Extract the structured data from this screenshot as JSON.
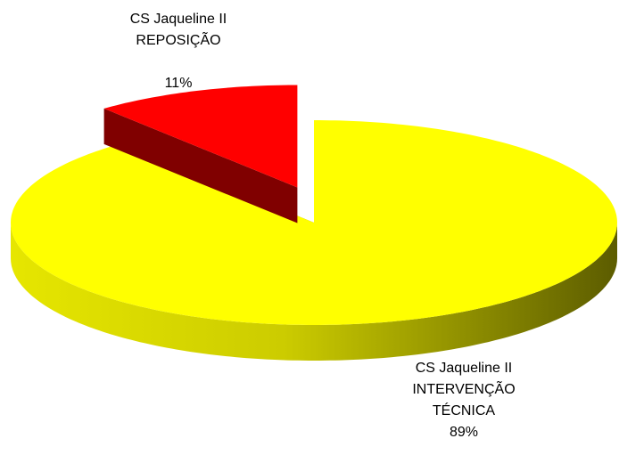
{
  "chart_data": {
    "type": "pie",
    "categories": [
      "CS Jaqueline II INTERVENÇÃO TÉCNICA",
      "CS Jaqueline II REPOSIÇÃO"
    ],
    "values": [
      89,
      11
    ],
    "value_labels": [
      "89%",
      "11%"
    ],
    "colors": [
      "#ffff00",
      "#ff0000"
    ]
  }
}
